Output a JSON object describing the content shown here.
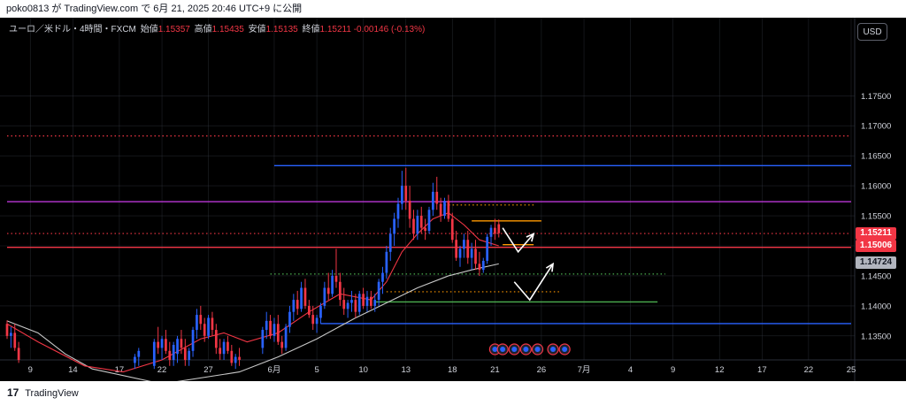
{
  "header": {
    "publish_text": "poko0813 が TradingView.com で 6月 21, 2025 20:46 UTC+9 に公開"
  },
  "footer": {
    "logo_mark": "17",
    "brand": "TradingView"
  },
  "legend": {
    "symbol": "ユーロ／米ドル・4時間・FXCM",
    "open_label": "始値",
    "open": "1.15357",
    "high_label": "高値",
    "high": "1.15435",
    "low_label": "安値",
    "low": "1.15135",
    "close_label": "終値",
    "close": "1.15211",
    "change": "-0.00146 (-0.13%)"
  },
  "currency_button": "USD",
  "price_tags": [
    {
      "price": 1.15211,
      "label": "1.15211",
      "bg": "#f23645",
      "fg": "#ffffff"
    },
    {
      "price": 1.15006,
      "label": "1.15006",
      "bg": "#f23645",
      "fg": "#ffffff"
    },
    {
      "price": 1.14724,
      "label": "1.14724",
      "bg": "#b2b5be",
      "fg": "#131722"
    }
  ],
  "colors": {
    "background": "#000000",
    "grid": "#363a45",
    "up_candle": "#2962ff",
    "down_candle": "#f23645",
    "sma_fast": "#f23645",
    "sma_slow": "#c8c8c8",
    "blue_line": "#2962ff",
    "magenta_line": "#ba36d6",
    "red_line": "#f23645",
    "orange_line": "#ff9800",
    "green_line": "#4caf50",
    "red_dotted": "#f23645",
    "green_dotted": "#4caf50",
    "arrow": "#ffffff"
  },
  "chart_data": {
    "type": "candlestick",
    "title": "",
    "symbol": "EURUSD",
    "timeframe": "4H",
    "ylim": [
      1.131,
      1.188
    ],
    "y_ticks": [
      1.135,
      1.14,
      1.145,
      1.15,
      1.155,
      1.16,
      1.165,
      1.17,
      1.175
    ],
    "y_tick_labels": [
      "1.13500",
      "1.14000",
      "1.14500",
      "1.15000",
      "1.15500",
      "1.16000",
      "1.16500",
      "1.17000",
      "1.17500"
    ],
    "x_tick_labels": [
      "9",
      "14",
      "17",
      "22",
      "27",
      "6月",
      "5",
      "10",
      "13",
      "18",
      "21",
      "26",
      "7月",
      "4",
      "9",
      "12",
      "17",
      "22",
      "25"
    ],
    "x_range_index": [
      0,
      218
    ],
    "x_tick_index": [
      6,
      17,
      29,
      40,
      52,
      69,
      80,
      92,
      103,
      115,
      126,
      138,
      149,
      161,
      172,
      184,
      195,
      207,
      218
    ],
    "grid": true,
    "candles_shape": "[index, open, high, low, close]",
    "candles": [
      [
        0,
        1.137,
        1.1376,
        1.1345,
        1.135
      ],
      [
        1,
        1.135,
        1.1365,
        1.133,
        1.1355
      ],
      [
        2,
        1.1355,
        1.137,
        1.1325,
        1.133
      ],
      [
        3,
        1.133,
        1.134,
        1.1305,
        1.131
      ],
      [
        33,
        1.1305,
        1.132,
        1.1295,
        1.1315
      ],
      [
        34,
        1.1315,
        1.133,
        1.13,
        1.1325
      ],
      [
        38,
        1.13,
        1.1345,
        1.1295,
        1.134
      ],
      [
        39,
        1.134,
        1.1365,
        1.132,
        1.133
      ],
      [
        40,
        1.133,
        1.135,
        1.131,
        1.1345
      ],
      [
        41,
        1.1345,
        1.136,
        1.132,
        1.1325
      ],
      [
        42,
        1.1325,
        1.134,
        1.13,
        1.131
      ],
      [
        43,
        1.131,
        1.134,
        1.13,
        1.1335
      ],
      [
        44,
        1.132,
        1.135,
        1.1305,
        1.1345
      ],
      [
        45,
        1.1345,
        1.136,
        1.132,
        1.133
      ],
      [
        46,
        1.133,
        1.1345,
        1.13,
        1.131
      ],
      [
        47,
        1.131,
        1.133,
        1.13,
        1.1325
      ],
      [
        48,
        1.1325,
        1.1365,
        1.1315,
        1.136
      ],
      [
        49,
        1.136,
        1.1395,
        1.1345,
        1.1385
      ],
      [
        50,
        1.1385,
        1.14,
        1.136,
        1.137
      ],
      [
        51,
        1.137,
        1.138,
        1.134,
        1.135
      ],
      [
        52,
        1.135,
        1.1385,
        1.1345,
        1.138
      ],
      [
        53,
        1.138,
        1.139,
        1.135,
        1.136
      ],
      [
        54,
        1.136,
        1.137,
        1.132,
        1.133
      ],
      [
        55,
        1.133,
        1.1345,
        1.131,
        1.132
      ],
      [
        56,
        1.132,
        1.1345,
        1.131,
        1.134
      ],
      [
        57,
        1.134,
        1.135,
        1.132,
        1.1325
      ],
      [
        58,
        1.1325,
        1.1335,
        1.13,
        1.1305
      ],
      [
        59,
        1.1305,
        1.132,
        1.1295,
        1.1315
      ],
      [
        60,
        1.1315,
        1.133,
        1.13,
        1.131
      ],
      [
        66,
        1.133,
        1.1365,
        1.132,
        1.136
      ],
      [
        67,
        1.136,
        1.139,
        1.1345,
        1.1375
      ],
      [
        68,
        1.1375,
        1.1385,
        1.1345,
        1.135
      ],
      [
        69,
        1.135,
        1.138,
        1.134,
        1.137
      ],
      [
        70,
        1.137,
        1.1385,
        1.1335,
        1.134
      ],
      [
        71,
        1.134,
        1.135,
        1.132,
        1.133
      ],
      [
        72,
        1.133,
        1.137,
        1.1325,
        1.1365
      ],
      [
        73,
        1.1365,
        1.14,
        1.1355,
        1.139
      ],
      [
        74,
        1.139,
        1.142,
        1.1375,
        1.141
      ],
      [
        75,
        1.141,
        1.1425,
        1.1385,
        1.1395
      ],
      [
        76,
        1.1395,
        1.144,
        1.139,
        1.143
      ],
      [
        77,
        1.143,
        1.1445,
        1.1395,
        1.14
      ],
      [
        78,
        1.14,
        1.141,
        1.138,
        1.1385
      ],
      [
        79,
        1.1385,
        1.14,
        1.136,
        1.137
      ],
      [
        80,
        1.137,
        1.1385,
        1.1355,
        1.138
      ],
      [
        81,
        1.138,
        1.1405,
        1.137,
        1.14
      ],
      [
        82,
        1.14,
        1.144,
        1.1395,
        1.143
      ],
      [
        83,
        1.143,
        1.1455,
        1.141,
        1.142
      ],
      [
        84,
        1.142,
        1.146,
        1.1415,
        1.145
      ],
      [
        85,
        1.145,
        1.1495,
        1.143,
        1.144
      ],
      [
        86,
        1.144,
        1.1455,
        1.14,
        1.141
      ],
      [
        87,
        1.141,
        1.143,
        1.1385,
        1.1395
      ],
      [
        88,
        1.1395,
        1.141,
        1.138,
        1.1405
      ],
      [
        89,
        1.1405,
        1.1425,
        1.139,
        1.141
      ],
      [
        90,
        1.141,
        1.142,
        1.138,
        1.139
      ],
      [
        91,
        1.139,
        1.1425,
        1.1385,
        1.142
      ],
      [
        92,
        1.142,
        1.143,
        1.1395,
        1.14
      ],
      [
        93,
        1.14,
        1.1425,
        1.139,
        1.1415
      ],
      [
        94,
        1.1415,
        1.1425,
        1.1395,
        1.14
      ],
      [
        95,
        1.14,
        1.142,
        1.139,
        1.141
      ],
      [
        96,
        1.141,
        1.1445,
        1.14,
        1.144
      ],
      [
        97,
        1.144,
        1.1465,
        1.142,
        1.1455
      ],
      [
        98,
        1.1455,
        1.15,
        1.1445,
        1.149
      ],
      [
        99,
        1.149,
        1.153,
        1.1475,
        1.152
      ],
      [
        100,
        1.152,
        1.1555,
        1.15,
        1.1545
      ],
      [
        101,
        1.1545,
        1.158,
        1.153,
        1.157
      ],
      [
        102,
        1.157,
        1.1625,
        1.156,
        1.16
      ],
      [
        103,
        1.16,
        1.163,
        1.156,
        1.1575
      ],
      [
        104,
        1.1575,
        1.16,
        1.153,
        1.1545
      ],
      [
        105,
        1.1545,
        1.156,
        1.151,
        1.152
      ],
      [
        106,
        1.152,
        1.156,
        1.151,
        1.155
      ],
      [
        107,
        1.155,
        1.1565,
        1.152,
        1.153
      ],
      [
        108,
        1.153,
        1.1545,
        1.151,
        1.1525
      ],
      [
        109,
        1.1525,
        1.1565,
        1.152,
        1.156
      ],
      [
        110,
        1.156,
        1.1605,
        1.155,
        1.159
      ],
      [
        111,
        1.159,
        1.1615,
        1.156,
        1.157
      ],
      [
        112,
        1.157,
        1.158,
        1.154,
        1.155
      ],
      [
        113,
        1.155,
        1.158,
        1.1545,
        1.1575
      ],
      [
        114,
        1.1575,
        1.1585,
        1.154,
        1.1545
      ],
      [
        115,
        1.1545,
        1.1555,
        1.1505,
        1.151
      ],
      [
        116,
        1.151,
        1.1525,
        1.1475,
        1.148
      ],
      [
        117,
        1.148,
        1.15,
        1.1465,
        1.1495
      ],
      [
        118,
        1.1495,
        1.152,
        1.148,
        1.151
      ],
      [
        119,
        1.151,
        1.1525,
        1.147,
        1.148
      ],
      [
        120,
        1.148,
        1.1505,
        1.146,
        1.1495
      ],
      [
        121,
        1.1495,
        1.151,
        1.146,
        1.147
      ],
      [
        122,
        1.147,
        1.149,
        1.145,
        1.146
      ],
      [
        123,
        1.146,
        1.148,
        1.1455,
        1.1475
      ],
      [
        124,
        1.1475,
        1.152,
        1.147,
        1.1515
      ],
      [
        125,
        1.1515,
        1.1535,
        1.15,
        1.153
      ],
      [
        126,
        1.153,
        1.1545,
        1.151,
        1.152
      ],
      [
        127,
        1.1536,
        1.1544,
        1.1514,
        1.1521
      ]
    ],
    "sma_fast_points": [
      [
        0,
        1.137
      ],
      [
        8,
        1.134
      ],
      [
        20,
        1.13
      ],
      [
        30,
        1.129
      ],
      [
        40,
        1.131
      ],
      [
        50,
        1.1345
      ],
      [
        56,
        1.1355
      ],
      [
        62,
        1.134
      ],
      [
        70,
        1.1355
      ],
      [
        78,
        1.139
      ],
      [
        86,
        1.142
      ],
      [
        94,
        1.141
      ],
      [
        98,
        1.144
      ],
      [
        102,
        1.149
      ],
      [
        106,
        1.152
      ],
      [
        110,
        1.1545
      ],
      [
        114,
        1.1555
      ],
      [
        118,
        1.1535
      ],
      [
        122,
        1.151
      ],
      [
        127,
        1.15
      ]
    ],
    "sma_slow_points": [
      [
        0,
        1.1375
      ],
      [
        8,
        1.1355
      ],
      [
        15,
        1.132
      ],
      [
        22,
        1.1295
      ],
      [
        40,
        1.127
      ],
      [
        60,
        1.129
      ],
      [
        70,
        1.1315
      ],
      [
        80,
        1.1345
      ],
      [
        90,
        1.138
      ],
      [
        98,
        1.1405
      ],
      [
        106,
        1.143
      ],
      [
        114,
        1.145
      ],
      [
        120,
        1.146
      ],
      [
        127,
        1.147
      ]
    ],
    "horizontal_lines": [
      {
        "price": 1.16335,
        "from": 69,
        "to": 218,
        "color": "#2962ff",
        "style": "solid"
      },
      {
        "price": 1.15735,
        "from": 0,
        "to": 218,
        "color": "#ba36d6",
        "style": "solid"
      },
      {
        "price": 1.14975,
        "from": 0,
        "to": 218,
        "color": "#f23645",
        "style": "solid"
      },
      {
        "price": 1.13705,
        "from": 81,
        "to": 218,
        "color": "#2962ff",
        "style": "solid"
      },
      {
        "price": 1.1683,
        "from": 0,
        "to": 218,
        "color": "#f23645",
        "style": "dotted"
      },
      {
        "price": 1.15205,
        "from": 0,
        "to": 218,
        "color": "#f23645",
        "style": "dotted"
      },
      {
        "price": 1.1453,
        "from": 68,
        "to": 170,
        "color": "#4caf50",
        "style": "dotted"
      },
      {
        "price": 1.1568,
        "from": 112,
        "to": 136,
        "color": "#ff9800",
        "style": "dotted"
      },
      {
        "price": 1.14235,
        "from": 98,
        "to": 143,
        "color": "#ff9800",
        "style": "dotted"
      },
      {
        "price": 1.15415,
        "from": 120,
        "to": 138,
        "color": "#ff9800",
        "style": "solid"
      },
      {
        "price": 1.1502,
        "from": 128,
        "to": 136,
        "color": "#ff9800",
        "style": "solid"
      },
      {
        "price": 1.14065,
        "from": 95,
        "to": 168,
        "color": "#4caf50",
        "style": "solid"
      }
    ],
    "arrow_paths": [
      [
        [
          128,
          1.153
        ],
        [
          132,
          1.149
        ],
        [
          136,
          1.152
        ]
      ],
      [
        [
          131,
          1.144
        ],
        [
          135,
          1.141
        ],
        [
          141,
          1.147
        ]
      ]
    ],
    "event_markers": [
      {
        "index": 126,
        "count": 1
      },
      {
        "index": 128,
        "count": 1
      },
      {
        "index": 131,
        "count": 1
      },
      {
        "index": 134,
        "count": 1
      },
      {
        "index": 137,
        "count": 1
      },
      {
        "index": 141,
        "count": 1
      },
      {
        "index": 144,
        "count": 1
      }
    ]
  }
}
